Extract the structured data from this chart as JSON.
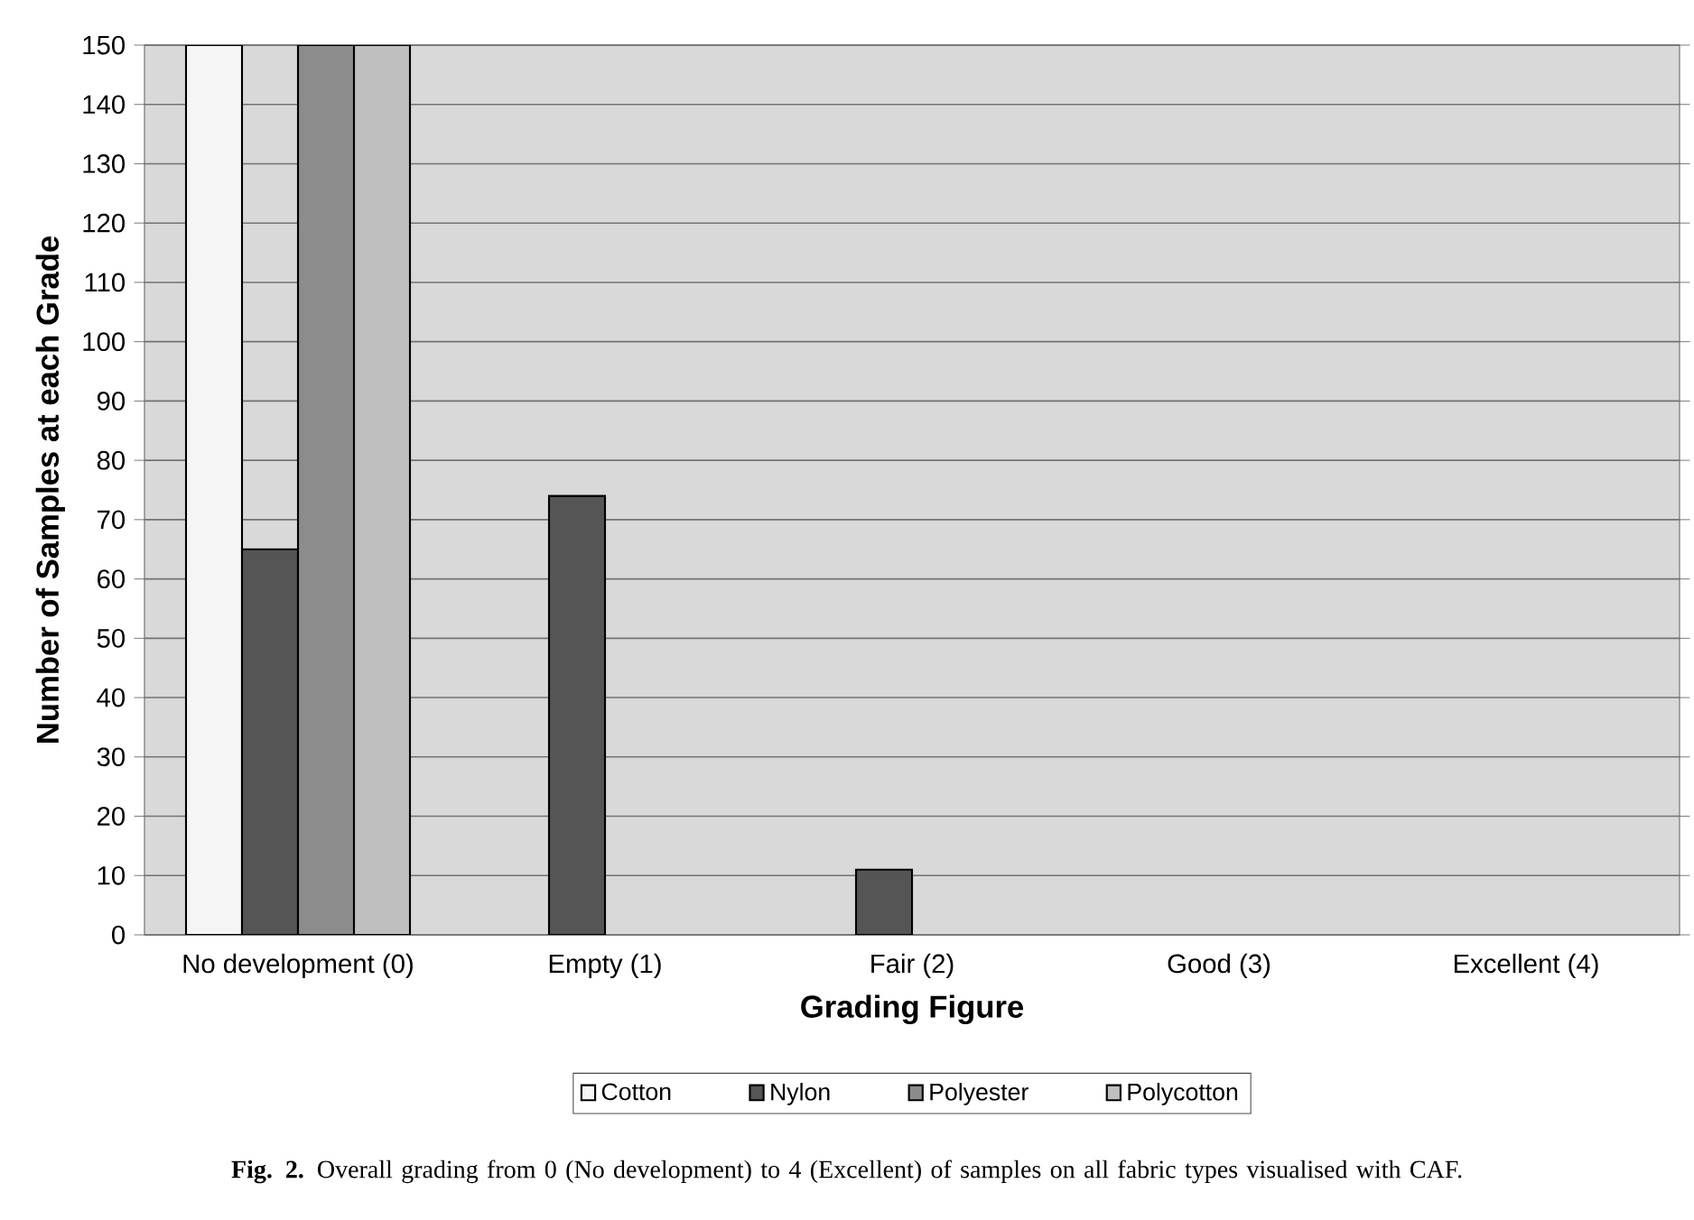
{
  "chart_data": {
    "type": "bar",
    "xlabel": "Grading Figure",
    "ylabel": "Number of Samples at each Grade",
    "categories": [
      "No development (0)",
      "Empty (1)",
      "Fair (2)",
      "Good (3)",
      "Excellent (4)"
    ],
    "series": [
      {
        "name": "Cotton",
        "color": "#f5f5f5",
        "values": [
          150,
          0,
          0,
          0,
          0
        ]
      },
      {
        "name": "Nylon",
        "color": "#555555",
        "values": [
          65,
          74,
          11,
          0,
          0
        ]
      },
      {
        "name": "Polyester",
        "color": "#8c8c8c",
        "values": [
          150,
          0,
          0,
          0,
          0
        ]
      },
      {
        "name": "Polycotton",
        "color": "#bfbfbf",
        "values": [
          150,
          0,
          0,
          0,
          0
        ]
      }
    ],
    "ylim": [
      0,
      150
    ],
    "yticks": [
      0,
      10,
      20,
      30,
      40,
      50,
      60,
      70,
      80,
      90,
      100,
      110,
      120,
      130,
      140,
      150
    ],
    "grid": "y",
    "legend": "bottom",
    "annotations": [
      "**Fig. 2.** Overall grading from 0 (No development) to 4 (Excellent) of samples on all fabric types visualised with CAF."
    ]
  }
}
